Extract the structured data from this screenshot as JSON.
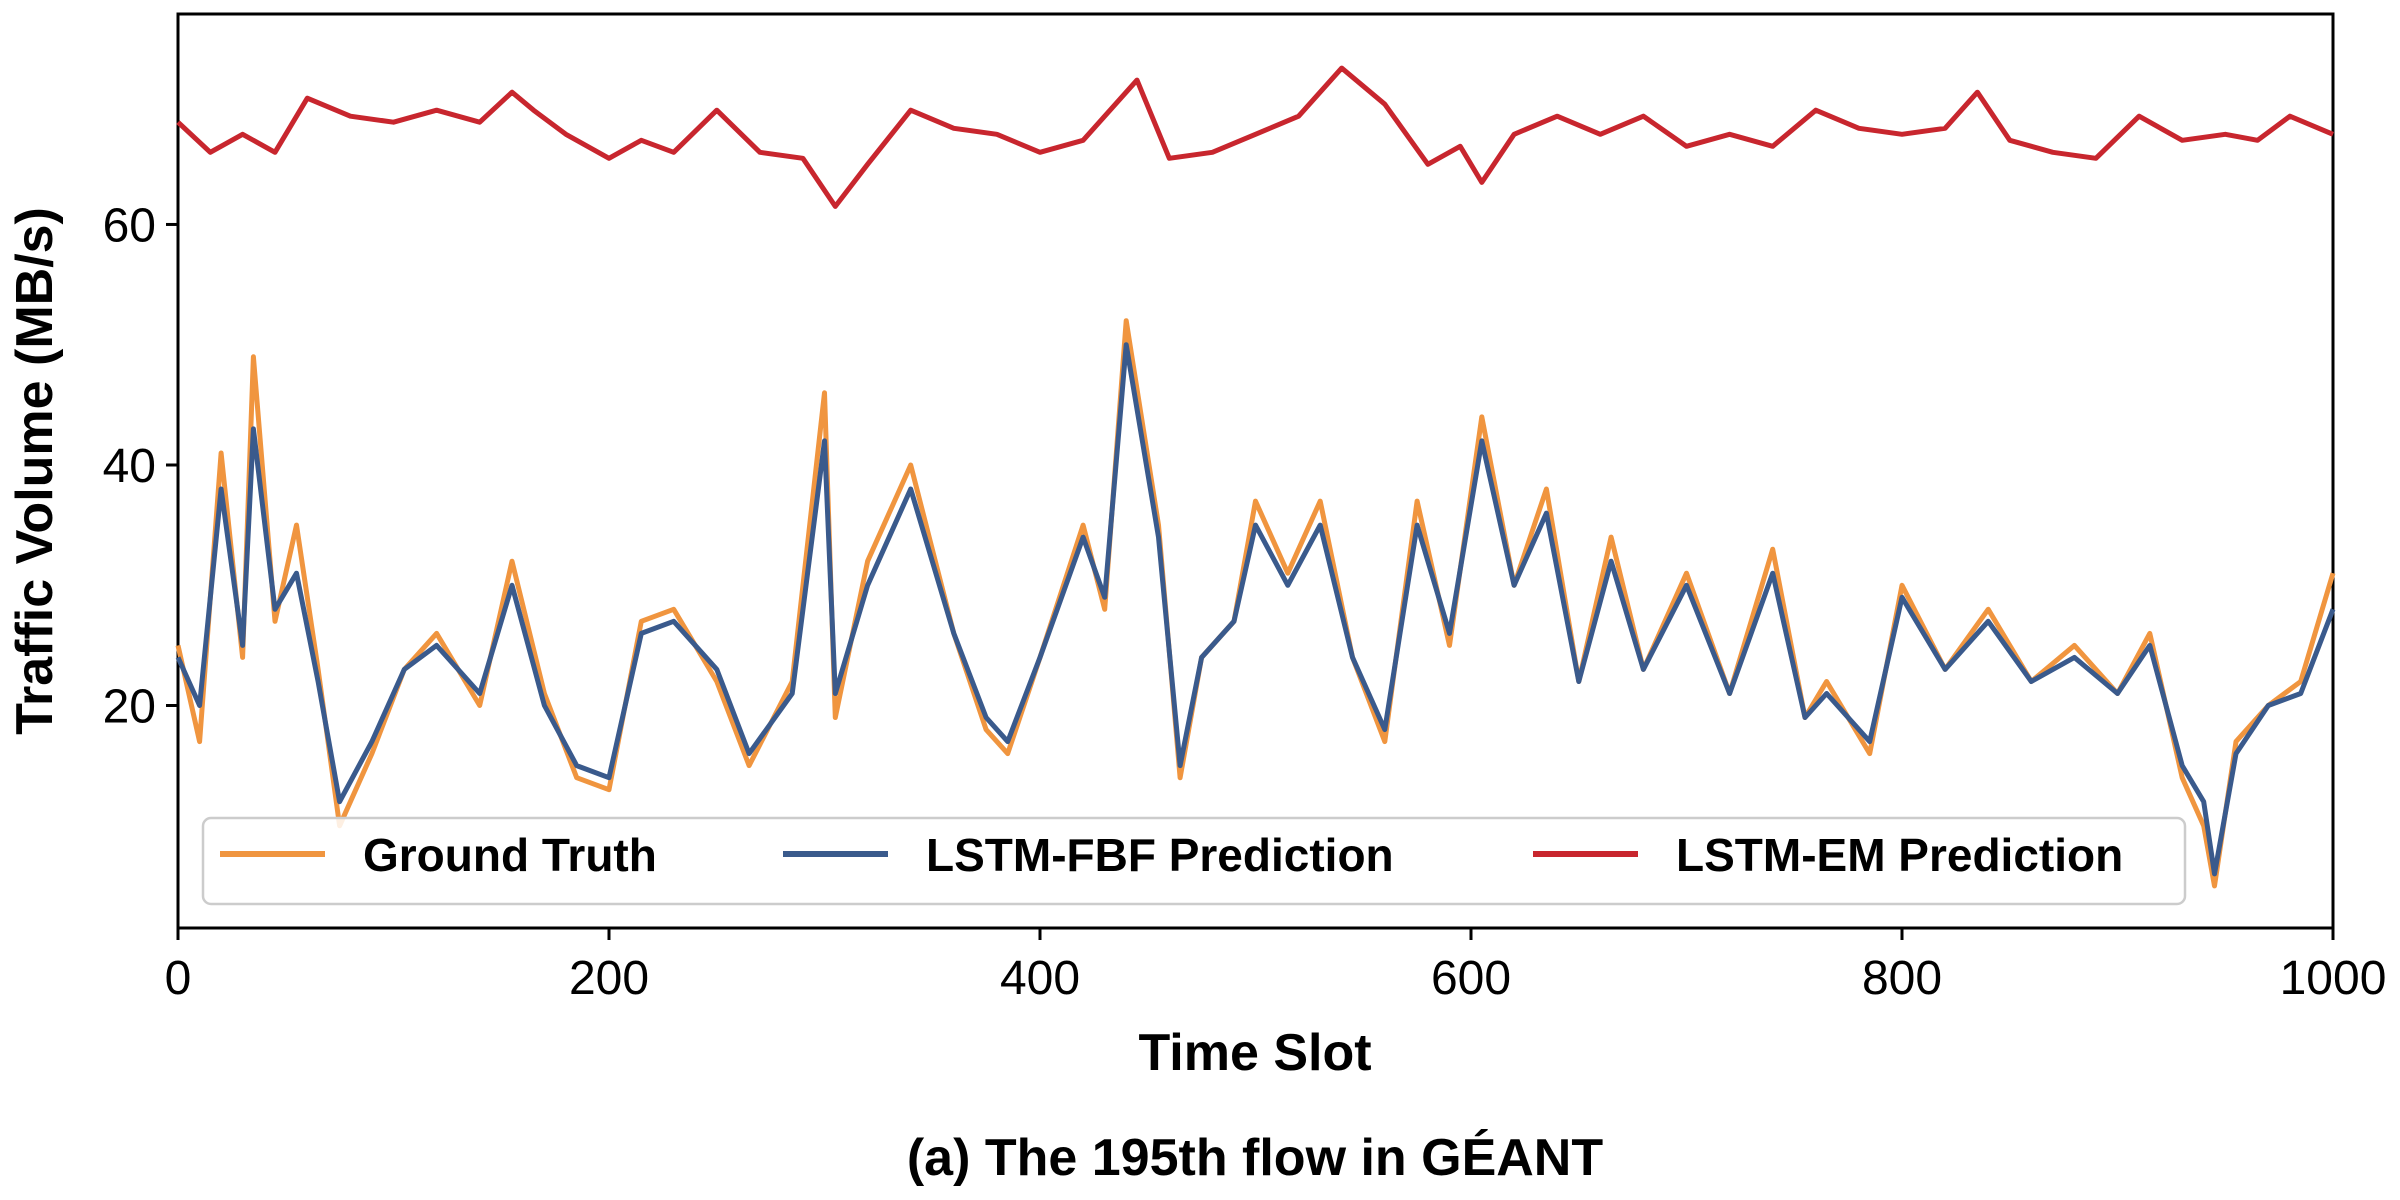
{
  "chart_data": {
    "type": "line",
    "caption": "(a) The 195th flow in GÉANT",
    "xlabel": "Time Slot",
    "ylabel": "Traffic Volume (MB/s)",
    "xlim": [
      0,
      1000
    ],
    "ylim": [
      1.5,
      77.5
    ],
    "xticks": [
      0,
      200,
      400,
      600,
      800,
      1000
    ],
    "yticks": [
      20,
      40,
      60
    ],
    "grid": false,
    "legend_position": "lower center",
    "series": [
      {
        "name": "Ground Truth",
        "color": "#f0953f",
        "x": [
          0,
          10,
          20,
          30,
          35,
          45,
          55,
          65,
          75,
          90,
          105,
          120,
          140,
          155,
          170,
          185,
          200,
          215,
          230,
          250,
          265,
          285,
          300,
          305,
          320,
          340,
          360,
          375,
          385,
          400,
          420,
          430,
          440,
          455,
          465,
          475,
          490,
          500,
          515,
          530,
          545,
          560,
          575,
          590,
          605,
          620,
          635,
          650,
          665,
          680,
          700,
          720,
          740,
          755,
          765,
          785,
          800,
          820,
          840,
          860,
          880,
          900,
          915,
          930,
          940,
          945,
          955,
          970,
          985,
          1000
        ],
        "values": [
          25,
          17,
          41,
          24,
          49,
          27,
          35,
          23,
          10,
          16,
          23,
          26,
          20,
          32,
          21,
          14,
          13,
          27,
          28,
          22,
          15,
          22,
          46,
          19,
          32,
          40,
          26,
          18,
          16,
          24,
          35,
          28,
          52,
          35,
          14,
          24,
          27,
          37,
          31,
          37,
          24,
          17,
          37,
          25,
          44,
          30,
          38,
          22,
          34,
          23,
          31,
          21,
          33,
          19,
          22,
          16,
          30,
          23,
          28,
          22,
          25,
          21,
          26,
          14,
          10,
          5,
          17,
          20,
          22,
          31
        ]
      },
      {
        "name": "LSTM-FBF Prediction",
        "color": "#3a5a8c",
        "x": [
          0,
          10,
          20,
          30,
          35,
          45,
          55,
          65,
          75,
          90,
          105,
          120,
          140,
          155,
          170,
          185,
          200,
          215,
          230,
          250,
          265,
          285,
          300,
          305,
          320,
          340,
          360,
          375,
          385,
          400,
          420,
          430,
          440,
          455,
          465,
          475,
          490,
          500,
          515,
          530,
          545,
          560,
          575,
          590,
          605,
          620,
          635,
          650,
          665,
          680,
          700,
          720,
          740,
          755,
          765,
          785,
          800,
          820,
          840,
          860,
          880,
          900,
          915,
          930,
          940,
          945,
          955,
          970,
          985,
          1000
        ],
        "values": [
          24,
          20,
          38,
          25,
          43,
          28,
          31,
          22,
          12,
          17,
          23,
          25,
          21,
          30,
          20,
          15,
          14,
          26,
          27,
          23,
          16,
          21,
          42,
          21,
          30,
          38,
          26,
          19,
          17,
          24,
          34,
          29,
          50,
          34,
          15,
          24,
          27,
          35,
          30,
          35,
          24,
          18,
          35,
          26,
          42,
          30,
          36,
          22,
          32,
          23,
          30,
          21,
          31,
          19,
          21,
          17,
          29,
          23,
          27,
          22,
          24,
          21,
          25,
          15,
          12,
          6,
          16,
          20,
          21,
          28
        ]
      },
      {
        "name": "LSTM-EM Prediction",
        "color": "#c8262e",
        "x": [
          0,
          15,
          30,
          45,
          60,
          80,
          100,
          120,
          140,
          155,
          165,
          180,
          200,
          215,
          230,
          250,
          270,
          290,
          305,
          320,
          340,
          360,
          380,
          400,
          420,
          445,
          460,
          480,
          500,
          520,
          540,
          560,
          580,
          595,
          605,
          620,
          640,
          660,
          680,
          700,
          720,
          740,
          760,
          780,
          800,
          820,
          835,
          850,
          870,
          890,
          910,
          930,
          950,
          965,
          980,
          1000
        ],
        "values": [
          68.5,
          66,
          67.5,
          66,
          70.5,
          69,
          68.5,
          69.5,
          68.5,
          71,
          69.5,
          67.5,
          65.5,
          67,
          66,
          69.5,
          66,
          65.5,
          61.5,
          65,
          69.5,
          68,
          67.5,
          66,
          67,
          72,
          65.5,
          66,
          67.5,
          69,
          73,
          70,
          65,
          66.5,
          63.5,
          67.5,
          69,
          67.5,
          69,
          66.5,
          67.5,
          66.5,
          69.5,
          68,
          67.5,
          68,
          71,
          67,
          66,
          65.5,
          69,
          67,
          67.5,
          67,
          69,
          67.5
        ]
      }
    ]
  }
}
